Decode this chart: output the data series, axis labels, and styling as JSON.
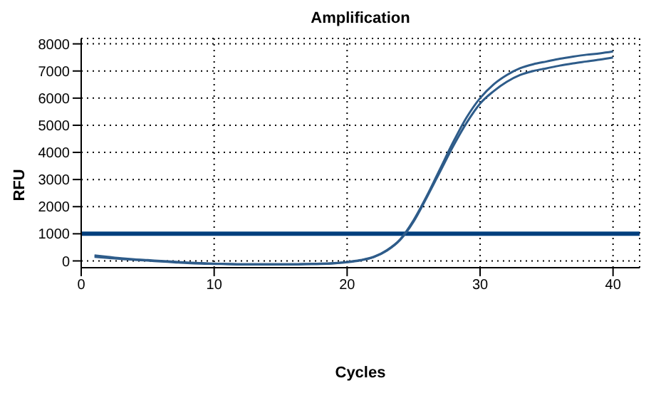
{
  "chart_data": {
    "type": "line",
    "title": "Amplification",
    "xlabel": "Cycles",
    "ylabel": "RFU",
    "x": [
      1,
      2,
      3,
      4,
      5,
      6,
      7,
      8,
      9,
      10,
      11,
      12,
      13,
      14,
      15,
      16,
      17,
      18,
      19,
      20,
      21,
      22,
      23,
      24,
      25,
      26,
      27,
      28,
      29,
      30,
      31,
      32,
      33,
      34,
      35,
      36,
      37,
      38,
      39,
      40
    ],
    "series": [
      {
        "color": "#2e5c8a",
        "values": [
          200,
          150,
          100,
          60,
          30,
          0,
          -30,
          -60,
          -80,
          -100,
          -110,
          -120,
          -120,
          -120,
          -120,
          -120,
          -110,
          -100,
          -80,
          -40,
          30,
          150,
          400,
          800,
          1500,
          2400,
          3400,
          4400,
          5300,
          6000,
          6500,
          6850,
          7100,
          7250,
          7350,
          7450,
          7530,
          7600,
          7650,
          7720
        ]
      },
      {
        "color": "#2e5c8a",
        "values": [
          150,
          110,
          70,
          40,
          10,
          -20,
          -50,
          -80,
          -100,
          -110,
          -120,
          -130,
          -130,
          -130,
          -130,
          -130,
          -120,
          -110,
          -90,
          -50,
          20,
          140,
          380,
          780,
          1450,
          2350,
          3300,
          4250,
          5100,
          5800,
          6250,
          6600,
          6850,
          7000,
          7100,
          7200,
          7280,
          7350,
          7420,
          7500
        ]
      }
    ],
    "xlim": [
      0,
      42
    ],
    "xticks": [
      0,
      10,
      20,
      30,
      40
    ],
    "ylim": [
      -250,
      8200
    ],
    "yticks": [
      0,
      1000,
      2000,
      3000,
      4000,
      5000,
      6000,
      7000,
      8000
    ],
    "grid": true,
    "marker": "none",
    "line_style": "solid",
    "ref_lines": [
      {
        "axis": "y",
        "value": 1000,
        "color": "#003f7d"
      }
    ]
  }
}
